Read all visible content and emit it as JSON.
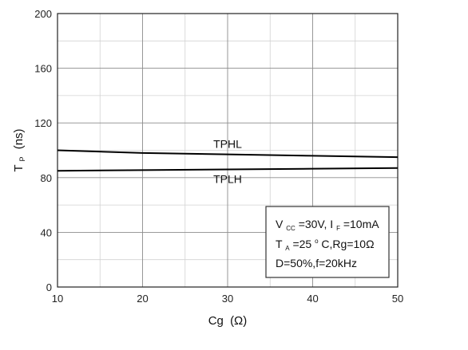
{
  "chart_data": {
    "type": "line",
    "xlabel_main": "Cg",
    "xlabel_unit": "(Ω)",
    "ylabel_main": "T",
    "ylabel_sub": "P",
    "ylabel_unit": "(ns)",
    "xlim": [
      10,
      50
    ],
    "ylim": [
      0,
      200
    ],
    "xticks": [
      10,
      20,
      30,
      40,
      50
    ],
    "yticks": [
      0,
      40,
      80,
      120,
      160,
      200
    ],
    "grid": true,
    "series": [
      {
        "name": "TPHL",
        "x": [
          10,
          20,
          30,
          40,
          50
        ],
        "y": [
          100,
          98,
          97,
          96,
          95
        ]
      },
      {
        "name": "TPLH",
        "x": [
          10,
          20,
          30,
          40,
          50
        ],
        "y": [
          85,
          85.5,
          86,
          86.5,
          87
        ]
      }
    ],
    "conditions": {
      "line1": {
        "v_main": "V",
        "v_sub": "CC",
        "v_rest": "=30V, I",
        "i_sub": "F",
        "i_rest": "=10mA"
      },
      "line2": {
        "t_main": "T",
        "t_sub": "A",
        "t_rest": "=25",
        "deg": "o",
        "rest": "C,Rg=10Ω"
      },
      "line3": "D=50%,f=20kHz"
    },
    "colors": {
      "line": "#000000",
      "major_grid": "#8c8c8c",
      "minor_grid": "#d2d2d2",
      "frame": "#222222"
    }
  }
}
